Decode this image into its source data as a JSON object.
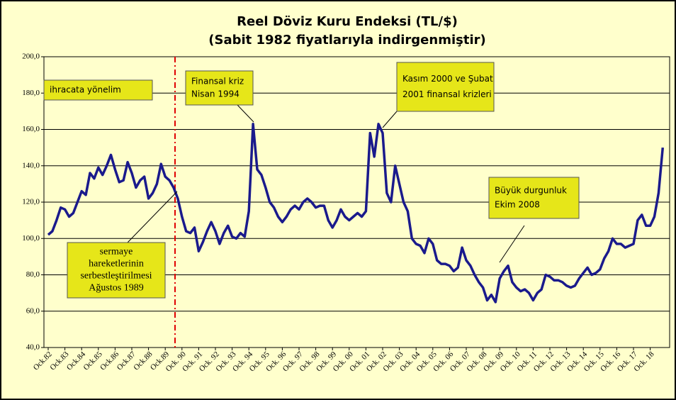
{
  "chart_data": {
    "type": "line",
    "title": "Reel Döviz Kuru Endeksi (TL/$)",
    "subtitle": "(Sabit 1982  fiyatlarıyla indirgenmiştir)",
    "categories": [
      "Ock.82",
      null,
      null,
      null,
      "Ock.83",
      null,
      null,
      null,
      "Ock.84",
      null,
      null,
      null,
      "Ock.85",
      null,
      null,
      null,
      "Ock.86",
      null,
      null,
      null,
      "Ock.87",
      null,
      null,
      null,
      "Ock.88",
      null,
      null,
      null,
      "Ock.89",
      null,
      null,
      null,
      "Ock. 90",
      null,
      null,
      null,
      "Ock. 91",
      null,
      null,
      null,
      "Ock. 92",
      null,
      null,
      null,
      "Ock. 93",
      null,
      null,
      null,
      "Ock. 94",
      null,
      null,
      null,
      "Ock. 95",
      null,
      null,
      null,
      "Ock. 96",
      null,
      null,
      null,
      "Ock. 97",
      null,
      null,
      null,
      "Ock. 98",
      null,
      null,
      null,
      "Ock. 99",
      null,
      null,
      null,
      "Ock. 00",
      null,
      null,
      null,
      "Ock. 01",
      null,
      null,
      null,
      "Ock. 02",
      null,
      null,
      null,
      "Ock. 03",
      null,
      null,
      null,
      "Ock. 04",
      null,
      null,
      null,
      "Ock. 05",
      null,
      null,
      null,
      "Ock. 06",
      null,
      null,
      null,
      "Ock. 07",
      null,
      null,
      null,
      "Ock. 08",
      null,
      null,
      null,
      "Ock. 09",
      null,
      null,
      null,
      "Ock. 10",
      null,
      null,
      null,
      "Ock. 11",
      null,
      null,
      null,
      "Ock. 12",
      null,
      null,
      null,
      "Ock. 13",
      null,
      null,
      null,
      "Ock. 14",
      null,
      null,
      null,
      "Ock. 15",
      null,
      null,
      null,
      "Ock. 16",
      null,
      null,
      null,
      "Ock. 17",
      null,
      null,
      null,
      "Ock. 18",
      null,
      null,
      null
    ],
    "series": [
      {
        "name": "Reel Döviz Kuru Endeksi",
        "color": "#1a1a8c",
        "values": [
          102,
          104,
          110,
          117,
          116,
          112,
          114,
          120,
          126,
          124,
          136,
          133,
          139,
          135,
          140,
          146,
          138,
          131,
          132,
          142,
          136,
          128,
          132,
          134,
          122,
          125,
          130,
          141,
          134,
          132,
          128,
          122,
          112,
          104,
          103,
          106,
          93,
          98,
          104,
          109,
          104,
          97,
          103,
          107,
          101,
          100,
          103,
          101,
          115,
          163,
          138,
          135,
          128,
          120,
          117,
          112,
          109,
          112,
          116,
          118,
          116,
          120,
          122,
          120,
          117,
          118,
          118,
          110,
          106,
          110,
          116,
          112,
          110,
          112,
          114,
          112,
          115,
          158,
          145,
          163,
          158,
          125,
          120,
          140,
          130,
          120,
          115,
          100,
          97,
          96,
          92,
          100,
          97,
          88,
          86,
          86,
          85,
          82,
          84,
          95,
          88,
          85,
          80,
          76,
          73,
          66,
          69,
          65,
          78,
          82,
          85,
          76,
          73,
          71,
          72,
          70,
          66,
          70,
          72,
          80,
          79,
          77,
          77,
          76,
          74,
          73,
          74,
          78,
          81,
          84,
          80,
          81,
          83,
          89,
          93,
          100,
          97,
          97,
          95,
          96,
          97,
          110,
          113,
          107,
          107,
          112,
          125,
          150
        ]
      }
    ],
    "ylim": [
      40,
      200
    ],
    "yticks": [
      {
        "value": 40,
        "label": "40,0"
      },
      {
        "value": 60,
        "label": "60,0"
      },
      {
        "value": 80,
        "label": "80,0"
      },
      {
        "value": 100,
        "label": "100,0"
      },
      {
        "value": 120,
        "label": "120,0"
      },
      {
        "value": 140,
        "label": "140,0"
      },
      {
        "value": 160,
        "label": "160,0"
      },
      {
        "value": 180,
        "label": "180,0"
      },
      {
        "value": 200,
        "label": "200,0"
      }
    ],
    "grid": true,
    "annotations": [
      {
        "lines": [
          "ihracata yönelim"
        ]
      },
      {
        "lines": [
          "Finansal kriz",
          "Nisan 1994"
        ]
      },
      {
        "lines": [
          "Kasım 2000  ve Şubat",
          "2001 finansal krizleri"
        ]
      },
      {
        "lines": [
          "Büyük durgunluk",
          "Ekim 2008"
        ]
      },
      {
        "lines": [
          "sermaye",
          "hareketlerinin",
          "serbestleştirilmesi",
          "Ağustos 1989"
        ]
      }
    ]
  }
}
